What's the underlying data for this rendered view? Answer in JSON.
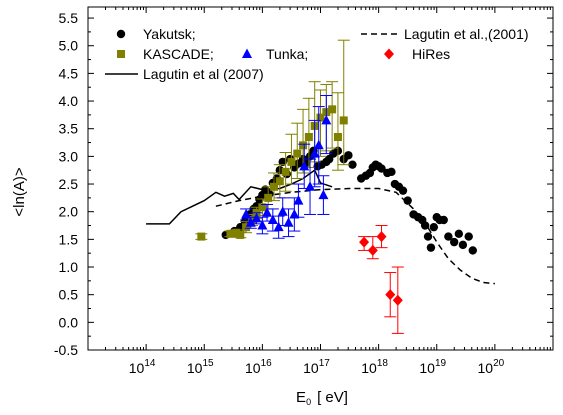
{
  "chart_data": {
    "type": "scatter",
    "title": "",
    "xlabel": "E",
    "xlabel_sub": "0",
    "xlabel_unit": "[ eV]",
    "ylabel": "<ln(A)>",
    "xscale": "log",
    "xlim": [
      10000000000000.0,
      1e+21
    ],
    "ylim": [
      -0.5,
      5.7
    ],
    "xticks": [
      {
        "base": "10",
        "exp": "14",
        "value": 14
      },
      {
        "base": "10",
        "exp": "15",
        "value": 15
      },
      {
        "base": "10",
        "exp": "16",
        "value": 16
      },
      {
        "base": "10",
        "exp": "17",
        "value": 17
      },
      {
        "base": "10",
        "exp": "18",
        "value": 18
      },
      {
        "base": "10",
        "exp": "19",
        "value": 19
      },
      {
        "base": "10",
        "exp": "20",
        "value": 20
      }
    ],
    "yticks": [
      "-0.5",
      "0.0",
      "0.5",
      "1.0",
      "1.5",
      "2.0",
      "2.5",
      "3.0",
      "3.5",
      "4.0",
      "4.5",
      "5.0",
      "5.5"
    ],
    "colors": {
      "yakutsk": "#000000",
      "kascade": "#808000",
      "tunka": "#0000ff",
      "hires": "#ff0000"
    },
    "legend": {
      "yakutsk": "Yakutsk;",
      "kascade": "KASCADE;",
      "tunka": "Tunka;",
      "lagutin2007": "Lagutin et al (2007)",
      "lagutin2001": "Lagutin et al.,(2001)",
      "hires": "HiRes"
    },
    "series": [
      {
        "name": "Yakutsk;",
        "marker": "circle",
        "points": [
          [
            15.37,
            1.58
          ],
          [
            15.52,
            1.65
          ],
          [
            15.62,
            1.72
          ],
          [
            15.7,
            1.82
          ],
          [
            15.78,
            1.95
          ],
          [
            15.85,
            2.05
          ],
          [
            15.9,
            2.1
          ],
          [
            15.95,
            2.22
          ],
          [
            16.0,
            2.3
          ],
          [
            16.05,
            2.4
          ],
          [
            16.12,
            2.32
          ],
          [
            16.18,
            2.52
          ],
          [
            16.25,
            2.6
          ],
          [
            16.3,
            2.75
          ],
          [
            16.35,
            2.9
          ],
          [
            16.42,
            2.68
          ],
          [
            16.48,
            2.95
          ],
          [
            16.55,
            2.8
          ],
          [
            16.62,
            2.87
          ],
          [
            16.7,
            2.95
          ],
          [
            16.75,
            2.88
          ],
          [
            16.82,
            3.0
          ],
          [
            16.88,
            3.1
          ],
          [
            16.95,
            2.82
          ],
          [
            17.02,
            2.85
          ],
          [
            17.1,
            2.9
          ],
          [
            17.15,
            2.95
          ],
          [
            17.22,
            3.05
          ],
          [
            17.3,
            3.1
          ],
          [
            17.4,
            2.95
          ],
          [
            17.48,
            3.02
          ],
          [
            17.55,
            2.85
          ],
          [
            17.7,
            2.6
          ],
          [
            17.78,
            2.65
          ],
          [
            17.85,
            2.7
          ],
          [
            17.9,
            2.8
          ],
          [
            17.95,
            2.85
          ],
          [
            18.0,
            2.82
          ],
          [
            18.05,
            2.78
          ],
          [
            18.15,
            2.7
          ],
          [
            18.22,
            2.72
          ],
          [
            18.28,
            2.5
          ],
          [
            18.35,
            2.45
          ],
          [
            18.42,
            2.38
          ],
          [
            18.5,
            2.2
          ],
          [
            18.6,
            1.95
          ],
          [
            18.68,
            1.9
          ],
          [
            18.75,
            1.85
          ],
          [
            18.8,
            1.75
          ],
          [
            18.85,
            1.55
          ],
          [
            18.9,
            1.35
          ],
          [
            18.95,
            1.72
          ],
          [
            19.0,
            1.9
          ],
          [
            19.05,
            1.85
          ],
          [
            19.12,
            1.85
          ],
          [
            19.2,
            1.55
          ],
          [
            19.3,
            1.45
          ],
          [
            19.38,
            1.6
          ],
          [
            19.45,
            1.4
          ],
          [
            19.55,
            1.55
          ],
          [
            19.62,
            1.3
          ]
        ]
      },
      {
        "name": "KASCADE;",
        "marker": "square",
        "points": [
          [
            14.95,
            1.55,
            0.05,
            0.05
          ],
          [
            15.45,
            1.6,
            0.05,
            0.05
          ],
          [
            15.55,
            1.62,
            0.05,
            0.05
          ],
          [
            15.62,
            1.58,
            0.05,
            0.05
          ],
          [
            15.72,
            1.72,
            0.1,
            0.1
          ],
          [
            15.82,
            1.85,
            0.1,
            0.1
          ],
          [
            15.9,
            1.98,
            0.1,
            0.1
          ],
          [
            16.0,
            2.08,
            0.15,
            0.15
          ],
          [
            16.1,
            2.25,
            0.2,
            0.2
          ],
          [
            16.2,
            2.45,
            0.25,
            0.25
          ],
          [
            16.3,
            2.55,
            0.3,
            0.3
          ],
          [
            16.4,
            2.72,
            0.35,
            0.35
          ],
          [
            16.5,
            2.9,
            0.4,
            0.5
          ],
          [
            16.6,
            3.05,
            0.45,
            0.55
          ],
          [
            16.7,
            3.2,
            0.5,
            0.65
          ],
          [
            16.8,
            3.35,
            0.55,
            0.7
          ],
          [
            16.9,
            3.55,
            0.65,
            0.8
          ],
          [
            17.0,
            3.7,
            0.7,
            0.5
          ],
          [
            17.1,
            3.8,
            0.7,
            0.5
          ],
          [
            17.2,
            3.85,
            0.7,
            0.5
          ],
          [
            17.3,
            3.35,
            0.6,
            0.8
          ],
          [
            17.4,
            3.65,
            0.8,
            1.45
          ]
        ]
      },
      {
        "name": "Tunka;",
        "marker": "triangle",
        "points": [
          [
            15.72,
            1.95,
            0.1,
            0.1
          ],
          [
            15.8,
            1.8,
            0.1,
            0.1
          ],
          [
            15.9,
            1.88,
            0.1,
            0.1
          ],
          [
            16.0,
            1.75,
            0.15,
            0.15
          ],
          [
            16.08,
            1.98,
            0.15,
            0.15
          ],
          [
            16.18,
            1.85,
            0.2,
            0.2
          ],
          [
            16.28,
            1.72,
            0.2,
            0.2
          ],
          [
            16.35,
            2.0,
            0.25,
            0.25
          ],
          [
            16.45,
            1.8,
            0.25,
            0.25
          ],
          [
            16.55,
            1.95,
            0.3,
            0.3
          ],
          [
            16.62,
            2.2,
            0.3,
            0.3
          ],
          [
            16.72,
            2.82,
            0.4,
            0.4
          ],
          [
            16.82,
            2.45,
            0.5,
            0.5
          ],
          [
            16.9,
            3.05,
            0.6,
            0.6
          ],
          [
            16.97,
            3.2,
            0.7,
            0.7
          ],
          [
            17.05,
            2.3,
            0.35,
            0.35
          ],
          [
            17.1,
            3.65,
            0.6,
            0.45
          ]
        ]
      },
      {
        "name": "HiRes",
        "marker": "diamond",
        "points": [
          [
            17.75,
            1.45,
            0.15,
            0.1
          ],
          [
            17.9,
            1.3,
            0.15,
            0.25
          ],
          [
            18.05,
            1.55,
            0.2,
            0.2
          ],
          [
            18.2,
            0.5,
            0.4,
            0.4
          ],
          [
            18.33,
            0.4,
            0.6,
            0.6
          ]
        ]
      },
      {
        "name": "Lagutin et al (2007)",
        "style": "solid",
        "points": [
          [
            14.0,
            1.78
          ],
          [
            14.4,
            1.78
          ],
          [
            14.6,
            2.0
          ],
          [
            14.8,
            2.1
          ],
          [
            15.0,
            2.2
          ],
          [
            15.2,
            2.35
          ],
          [
            15.35,
            2.28
          ],
          [
            15.5,
            2.33
          ],
          [
            15.6,
            2.22
          ],
          [
            15.8,
            2.45
          ],
          [
            16.0,
            2.4
          ],
          [
            16.3,
            2.42
          ],
          [
            16.5,
            2.5
          ],
          [
            16.7,
            2.6
          ],
          [
            16.9,
            2.75
          ],
          [
            17.0,
            2.52
          ],
          [
            17.2,
            2.45
          ]
        ]
      },
      {
        "name": "Lagutin et al.,(2001)",
        "style": "dashed",
        "points": [
          [
            15.2,
            2.1
          ],
          [
            15.6,
            2.2
          ],
          [
            16.0,
            2.28
          ],
          [
            16.5,
            2.35
          ],
          [
            17.0,
            2.4
          ],
          [
            17.5,
            2.42
          ],
          [
            18.0,
            2.42
          ],
          [
            18.3,
            2.35
          ],
          [
            18.6,
            2.05
          ],
          [
            18.8,
            1.8
          ],
          [
            19.0,
            1.45
          ],
          [
            19.2,
            1.15
          ],
          [
            19.4,
            0.95
          ],
          [
            19.6,
            0.8
          ],
          [
            19.8,
            0.72
          ],
          [
            20.0,
            0.7
          ]
        ]
      }
    ]
  }
}
